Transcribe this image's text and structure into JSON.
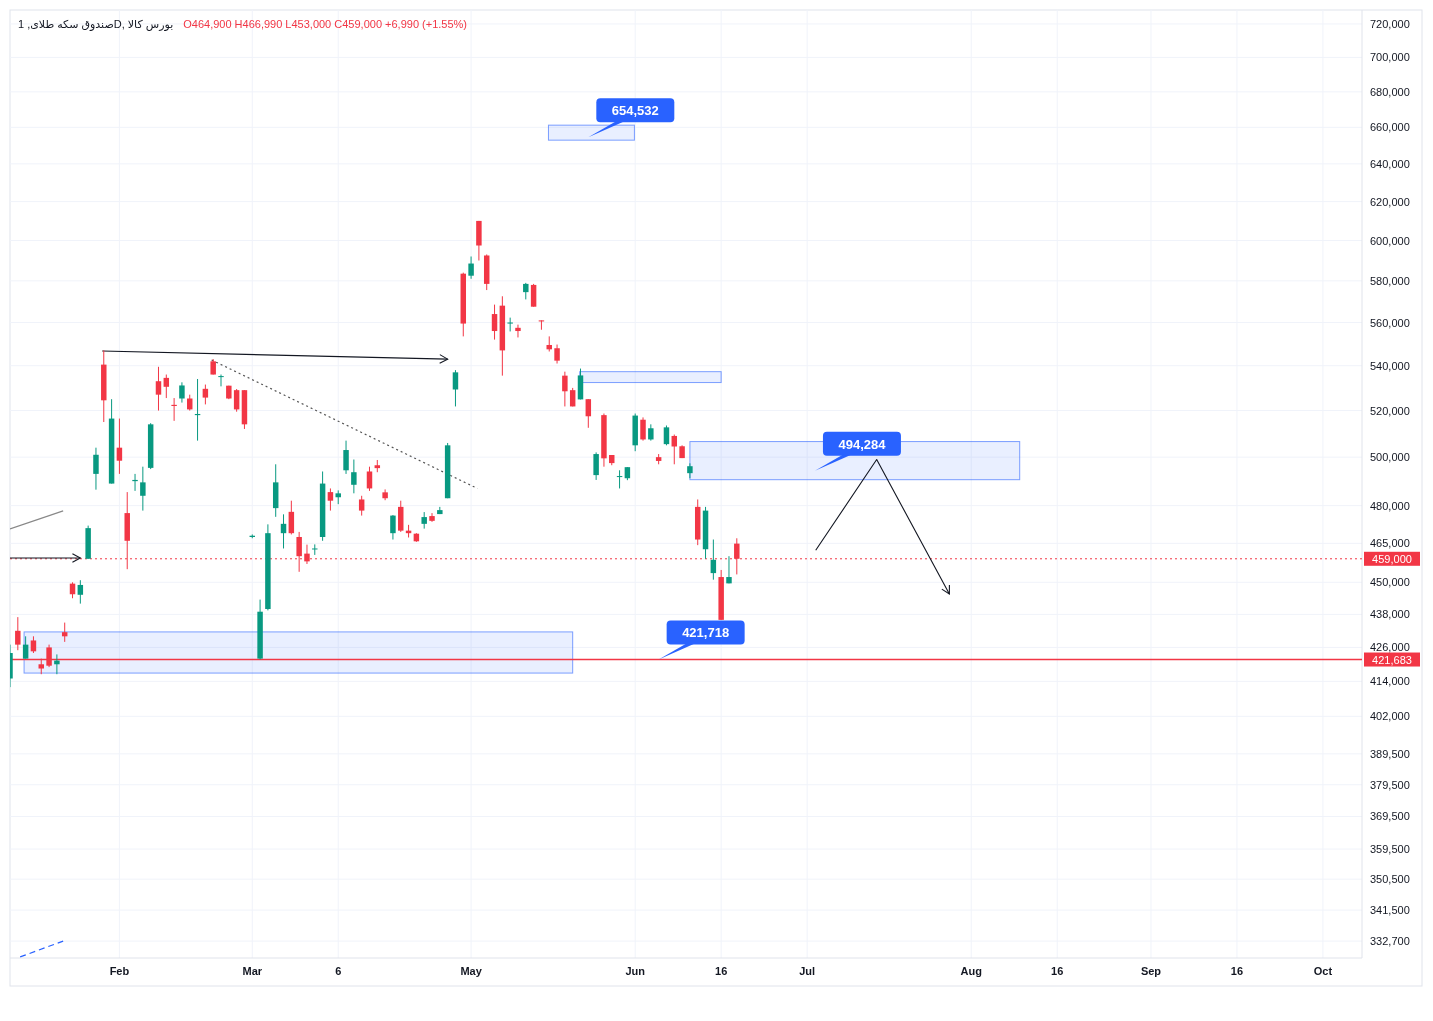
{
  "chart_data": {
    "type": "candlestick",
    "title": "صندوق سکه طلای, 1D, بورس کالا",
    "subtitle": "O464,900 H466,990 L453,000 C459,000 +6,990 (+1.55%)",
    "categories": [
      null,
      null,
      null,
      null,
      null,
      null,
      null,
      null,
      null,
      null,
      null,
      null,
      null,
      null,
      "Feb",
      null,
      null,
      null,
      null,
      null,
      null,
      null,
      null,
      null,
      null,
      null,
      null,
      null,
      null,
      null,
      null,
      "Mar",
      null,
      null,
      null,
      null,
      null,
      null,
      null,
      null,
      null,
      null,
      "6",
      null,
      null,
      null,
      null,
      null,
      null,
      null,
      null,
      null,
      null,
      null,
      null,
      null,
      null,
      null,
      null,
      "May",
      null,
      null,
      null,
      null,
      null,
      null,
      null,
      null,
      null,
      null,
      null,
      null,
      null,
      null,
      null,
      null,
      null,
      null,
      null,
      null,
      "Jun",
      null,
      null,
      null,
      null,
      null,
      null,
      null,
      null,
      null,
      null,
      "16",
      null,
      null,
      null,
      null,
      null,
      null,
      null,
      null,
      null,
      null,
      "Jul",
      null,
      null,
      null,
      null,
      null,
      null,
      null,
      null,
      null,
      null,
      null,
      null,
      null,
      null,
      null,
      null,
      null,
      null,
      null,
      null,
      "Aug",
      null,
      null,
      null,
      null,
      null,
      null,
      null,
      null,
      null,
      null,
      "16",
      null,
      null,
      null,
      null,
      null,
      null,
      null,
      null,
      null,
      null,
      null,
      "Sep",
      null,
      null,
      null,
      null,
      null,
      null,
      null,
      null,
      null,
      null,
      "16",
      null,
      null,
      null,
      null,
      null,
      null,
      null,
      null,
      null,
      null,
      "Oct",
      null,
      null,
      null,
      null,
      null
    ],
    "ohlc": [
      [
        415000,
        427000,
        412000,
        424000
      ],
      [
        432000,
        437000,
        425000,
        427000
      ],
      [
        422000,
        430000,
        422000,
        427000
      ],
      [
        428500,
        430000,
        424000,
        424600
      ],
      [
        420000,
        422000,
        416500,
        418500
      ],
      [
        426000,
        427000,
        419000,
        419500
      ],
      [
        420000,
        423500,
        416500,
        421300
      ],
      [
        431500,
        435000,
        428000,
        430000
      ],
      [
        449500,
        450000,
        444000,
        445500
      ],
      [
        445300,
        450800,
        442000,
        449000
      ],
      [
        459000,
        472000,
        459000,
        471000
      ],
      [
        493000,
        504000,
        486500,
        501000
      ],
      [
        540500,
        547000,
        515000,
        524500
      ],
      [
        489000,
        525000,
        489000,
        516500
      ],
      [
        504000,
        516500,
        493000,
        498500
      ],
      [
        477000,
        485500,
        455000,
        466000
      ],
      [
        490000,
        493000,
        486000,
        490500
      ],
      [
        484000,
        496000,
        478000,
        489500
      ],
      [
        495500,
        514500,
        495000,
        514000
      ],
      [
        533000,
        539500,
        520000,
        527000
      ],
      [
        534500,
        536000,
        525500,
        530500
      ],
      [
        522500,
        525500,
        515500,
        522000
      ],
      [
        525300,
        532500,
        523500,
        531100
      ],
      [
        525300,
        527000,
        520000,
        520500
      ],
      [
        518000,
        534000,
        507000,
        518500
      ],
      [
        529600,
        531500,
        522700,
        525700
      ],
      [
        542000,
        543000,
        536000,
        536000
      ],
      [
        535000,
        536000,
        530700,
        535300
      ],
      [
        531000,
        531000,
        525000,
        525300
      ],
      [
        529000,
        529500,
        519500,
        520500
      ],
      [
        529000,
        529000,
        512000,
        514000
      ],
      [
        467500,
        468500,
        467000,
        468000
      ],
      [
        422000,
        443500,
        421700,
        439000
      ],
      [
        440000,
        472500,
        439500,
        469000
      ],
      [
        479000,
        497000,
        475500,
        489500
      ],
      [
        469000,
        476500,
        463000,
        472700
      ],
      [
        477500,
        482000,
        468500,
        469000
      ],
      [
        467500,
        469500,
        454000,
        460000
      ],
      [
        461000,
        464500,
        457000,
        458000
      ],
      [
        462700,
        464600,
        460500,
        463000
      ],
      [
        467500,
        494000,
        466000,
        489000
      ],
      [
        485500,
        487000,
        478000,
        482000
      ],
      [
        483400,
        486200,
        480600,
        485000
      ],
      [
        494500,
        507000,
        493000,
        503000
      ],
      [
        488500,
        499000,
        485000,
        493700
      ],
      [
        482500,
        484000,
        476000,
        478000
      ],
      [
        494000,
        496000,
        486000,
        487000
      ],
      [
        496600,
        498800,
        493700,
        495400
      ],
      [
        485400,
        486600,
        482200,
        483000
      ],
      [
        469000,
        476200,
        466500,
        476000
      ],
      [
        479500,
        482000,
        469500,
        470000
      ],
      [
        470000,
        472300,
        467300,
        469000
      ],
      [
        468800,
        469000,
        465600,
        465800
      ],
      [
        472700,
        477400,
        470800,
        475400
      ],
      [
        475800,
        477000,
        473500,
        473900
      ],
      [
        476600,
        479500,
        476600,
        478200
      ],
      [
        483000,
        506000,
        483000,
        505000
      ],
      [
        529300,
        538000,
        521800,
        537000
      ],
      [
        583500,
        584000,
        553500,
        559500
      ],
      [
        582500,
        592000,
        581000,
        588500
      ],
      [
        610000,
        610000,
        590000,
        597500
      ],
      [
        592500,
        593000,
        575500,
        578500
      ],
      [
        564000,
        568500,
        552000,
        556000
      ],
      [
        568000,
        572500,
        535500,
        547000
      ],
      [
        559500,
        562300,
        555800,
        560000
      ],
      [
        557500,
        559000,
        553000,
        556000
      ],
      [
        574500,
        579000,
        571000,
        578500
      ],
      [
        578000,
        578500,
        567500,
        567500
      ],
      [
        561000,
        561000,
        556600,
        560500
      ],
      [
        549500,
        553500,
        546500,
        547500
      ],
      [
        548000,
        549700,
        541000,
        542300
      ],
      [
        535500,
        537300,
        521800,
        528500
      ],
      [
        529000,
        530000,
        521800,
        521800
      ],
      [
        524900,
        538700,
        524900,
        535600
      ],
      [
        525000,
        525000,
        512500,
        517500
      ],
      [
        492500,
        502000,
        490500,
        501300
      ],
      [
        518000,
        518700,
        496000,
        499500
      ],
      [
        500900,
        500900,
        496600,
        497500
      ],
      [
        492000,
        494500,
        487000,
        492100
      ],
      [
        491200,
        495800,
        490400,
        495800
      ],
      [
        505000,
        518700,
        502500,
        517800
      ],
      [
        516000,
        517000,
        507000,
        507500
      ],
      [
        507500,
        514000,
        507000,
        512300
      ],
      [
        500000,
        501300,
        497000,
        498400
      ],
      [
        505500,
        513500,
        505000,
        512700
      ],
      [
        509000,
        509600,
        497000,
        504500
      ],
      [
        504600,
        505000,
        499600,
        499600
      ],
      [
        493300,
        497400,
        491200,
        496200
      ],
      [
        479500,
        482500,
        464300,
        466500
      ],
      [
        462700,
        479500,
        459000,
        478000
      ],
      [
        453500,
        466500,
        451000,
        458600
      ],
      [
        452000,
        454700,
        436000,
        436000
      ],
      [
        449600,
        460000,
        449600,
        452000
      ],
      [
        464900,
        466990,
        453000,
        459000
      ],
      null,
      null,
      null,
      null,
      null,
      null,
      null,
      null,
      null,
      null,
      null,
      null,
      null,
      null,
      null,
      null,
      null,
      null,
      null,
      null,
      null,
      null,
      null,
      null,
      null,
      null,
      null,
      null,
      null,
      null,
      null,
      null,
      null,
      null,
      null,
      null,
      null,
      null,
      null,
      null,
      null,
      null,
      null,
      null,
      null,
      null,
      null,
      null,
      null,
      null,
      null,
      null,
      null,
      null,
      null,
      null,
      null,
      null,
      null,
      null,
      null,
      null,
      null,
      null,
      null,
      null,
      null,
      null,
      null,
      null,
      null,
      null,
      null,
      null,
      null,
      null,
      null,
      null,
      null,
      null
    ],
    "colors": [
      "#089981",
      "#f23645",
      "#089981",
      "#f23645",
      "#f23645",
      "#f23645",
      "#089981",
      "#f23645",
      "#f23645",
      "#089981",
      "#089981",
      "#089981",
      "#f23645",
      "#089981",
      "#f23645",
      "#f23645",
      "#089981",
      "#089981",
      "#089981",
      "#f23645",
      "#f23645",
      "#f23645",
      "#089981",
      "#f23645",
      "#089981",
      "#f23645",
      "#f23645",
      "#089981",
      "#f23645",
      "#f23645",
      "#f23645",
      "#089981",
      "#089981",
      "#089981",
      "#089981",
      "#089981",
      "#f23645",
      "#f23645",
      "#f23645",
      "#089981",
      "#089981",
      "#f23645",
      "#089981",
      "#089981",
      "#089981",
      "#f23645",
      "#f23645",
      "#f23645",
      "#f23645",
      "#089981",
      "#f23645",
      "#f23645",
      "#f23645",
      "#089981",
      "#f23645",
      "#089981",
      "#089981",
      "#089981",
      "#f23645",
      "#089981",
      "#f23645",
      "#f23645",
      "#f23645",
      "#f23645",
      "#089981",
      "#f23645",
      "#089981",
      "#f23645",
      "#f23645",
      "#f23645",
      "#f23645",
      "#f23645",
      "#f23645",
      "#089981",
      "#f23645",
      "#089981",
      "#f23645",
      "#f23645",
      "#089981",
      "#089981",
      "#089981",
      "#f23645",
      "#089981",
      "#f23645",
      "#089981",
      "#f23645",
      "#f23645",
      "#089981",
      "#f23645",
      "#089981",
      "#089981",
      "#f23645",
      "#089981",
      "#f23645",
      null,
      null,
      null,
      null,
      null,
      null,
      null,
      null,
      null,
      null,
      null,
      null,
      null,
      null,
      null,
      null,
      null,
      null,
      null,
      null,
      null,
      null,
      null,
      null,
      null,
      null,
      null,
      null,
      null,
      null,
      null,
      null,
      null,
      null,
      null,
      null,
      null,
      null,
      null,
      null,
      null,
      null,
      null,
      null,
      null,
      null,
      null,
      null,
      null,
      null,
      null,
      null,
      null,
      null,
      null,
      null,
      null,
      null,
      null,
      null,
      null,
      null,
      null,
      null,
      null,
      null,
      null,
      null,
      null,
      null,
      null,
      null,
      null,
      null,
      null,
      null,
      null,
      null,
      null,
      null
    ],
    "ylim": [
      328000,
      728500
    ],
    "log": true,
    "yticks": [
      {
        "value": 720000,
        "label": "720,000"
      },
      {
        "value": 700000,
        "label": "700,000"
      },
      {
        "value": 680000,
        "label": "680,000"
      },
      {
        "value": 660000,
        "label": "660,000"
      },
      {
        "value": 640000,
        "label": "640,000"
      },
      {
        "value": 620000,
        "label": "620,000"
      },
      {
        "value": 600000,
        "label": "600,000"
      },
      {
        "value": 580000,
        "label": "580,000"
      },
      {
        "value": 560000,
        "label": "560,000"
      },
      {
        "value": 540000,
        "label": "540,000"
      },
      {
        "value": 520000,
        "label": "520,000"
      },
      {
        "value": 500000,
        "label": "500,000"
      },
      {
        "value": 480000,
        "label": "480,000"
      },
      {
        "value": 465000,
        "label": "465,000"
      },
      {
        "value": 450000,
        "label": "450,000"
      },
      {
        "value": 438000,
        "label": "438,000"
      },
      {
        "value": 426000,
        "label": "426,000"
      },
      {
        "value": 414000,
        "label": "414,000"
      },
      {
        "value": 402000,
        "label": "402,000"
      },
      {
        "value": 389500,
        "label": "389,500"
      },
      {
        "value": 379500,
        "label": "379,500"
      },
      {
        "value": 369500,
        "label": "369,500"
      },
      {
        "value": 359500,
        "label": "359,500"
      },
      {
        "value": 350500,
        "label": "350,500"
      },
      {
        "value": 341500,
        "label": "341,500"
      },
      {
        "value": 332700,
        "label": "332,700"
      }
    ],
    "grid": true,
    "ref_lines": [
      {
        "axis": "y",
        "value": 459000,
        "label": "459,000",
        "color": "#f23645",
        "line_style": "dotted"
      },
      {
        "axis": "y",
        "value": 421683,
        "label": "421,683",
        "color": "#f23645",
        "line_style": "solid"
      }
    ],
    "annotations": [
      "654,532",
      "494,284",
      "421,718"
    ]
  }
}
